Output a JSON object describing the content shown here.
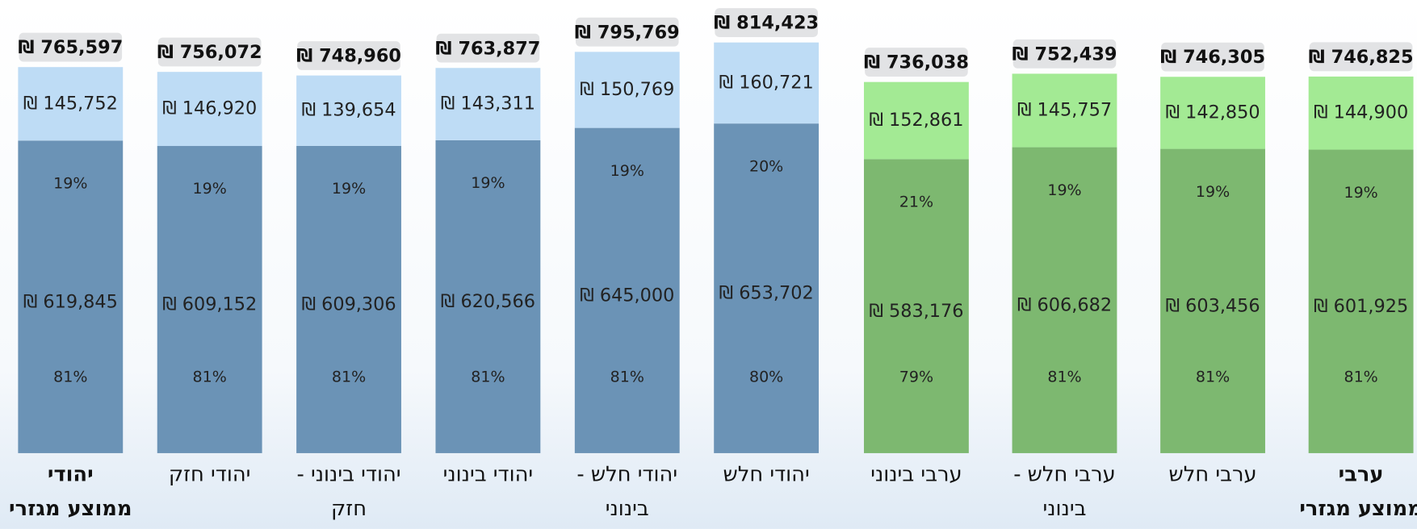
{
  "chart_data": {
    "type": "stacked-bar",
    "categories": [
      [
        "יהודי",
        "ממוצע מגזרי"
      ],
      [
        "יהודי חזק"
      ],
      [
        "יהודי בינוני -",
        "חזק"
      ],
      [
        "יהודי בינוני"
      ],
      [
        "יהודי חלש -",
        "בינוני"
      ],
      [
        "יהודי חלש"
      ],
      [
        "ערבי בינוני"
      ],
      [
        "ערבי חלש -",
        "בינוני"
      ],
      [
        "ערבי חלש"
      ],
      [
        "ערבי",
        "ממוצע מגזרי"
      ]
    ],
    "series": [
      {
        "colors": [
          "#6b93b6",
          "#6b93b6",
          "#6b93b6",
          "#6b93b6",
          "#6b93b6",
          "#6b93b6",
          "#7db870",
          "#7db870",
          "#7db870",
          "#7db870"
        ],
        "values": [
          619845,
          609152,
          609306,
          620566,
          645000,
          653702,
          583176,
          606682,
          603456,
          601925
        ],
        "value_labels": [
          "₪ 619,845",
          "₪ 609,152",
          "₪ 609,306",
          "₪ 620,566",
          "₪ 645,000",
          "₪ 653,702",
          "₪ 583,176",
          "₪ 606,682",
          "₪ 603,456",
          "₪ 601,925"
        ],
        "percents": [
          81,
          81,
          81,
          81,
          81,
          80,
          79,
          81,
          81,
          81
        ],
        "percent_labels": [
          "81%",
          "81%",
          "81%",
          "81%",
          "81%",
          "80%",
          "79%",
          "81%",
          "81%",
          "81%"
        ]
      },
      {
        "colors": [
          "#bedcf5",
          "#bedcf5",
          "#bedcf5",
          "#bedcf5",
          "#bedcf5",
          "#bedcf5",
          "#a3ea94",
          "#a3ea94",
          "#a3ea94",
          "#a3ea94"
        ],
        "values": [
          145752,
          146920,
          139654,
          143311,
          150769,
          160721,
          152861,
          145757,
          142850,
          144900
        ],
        "value_labels": [
          "₪ 145,752",
          "₪ 146,920",
          "₪ 139,654",
          "₪ 143,311",
          "₪ 150,769",
          "₪ 160,721",
          "₪ 152,861",
          "₪ 145,757",
          "₪ 142,850",
          "₪ 144,900"
        ],
        "percents": [
          19,
          19,
          19,
          19,
          19,
          20,
          21,
          19,
          19,
          19
        ],
        "percent_labels": [
          "19%",
          "19%",
          "19%",
          "19%",
          "19%",
          "20%",
          "21%",
          "19%",
          "19%",
          "19%"
        ]
      }
    ],
    "totals": [
      765597,
      756072,
      748960,
      763877,
      795769,
      814423,
      736038,
      752439,
      746305,
      746825
    ],
    "total_labels": [
      "₪ 765,597",
      "₪ 756,072",
      "₪ 748,960",
      "₪ 763,877",
      "₪ 795,769",
      "₪ 814,423",
      "₪ 736,038",
      "₪ 752,439",
      "₪ 746,305",
      "₪ 746,825"
    ]
  }
}
